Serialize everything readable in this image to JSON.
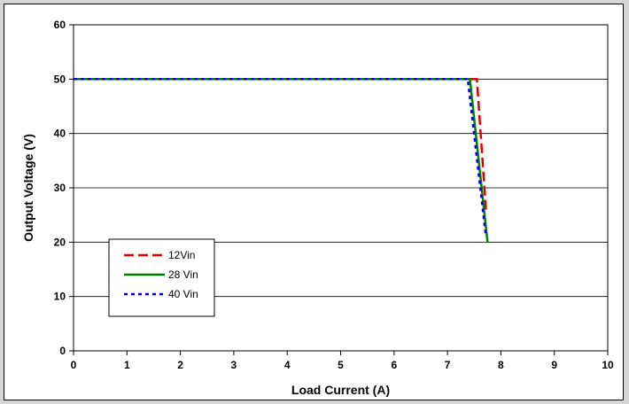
{
  "chart_data": {
    "type": "line",
    "title": "",
    "xlabel": "Load Current (A)",
    "ylabel": "Output Voltage (V)",
    "xlim": [
      0,
      10
    ],
    "ylim": [
      0,
      60
    ],
    "x_ticks": [
      0,
      1,
      2,
      3,
      4,
      5,
      6,
      7,
      8,
      9,
      10
    ],
    "y_ticks": [
      0,
      10,
      20,
      30,
      40,
      50,
      60
    ],
    "grid": "horizontal",
    "legend_position": "left",
    "series": [
      {
        "name": "12Vin",
        "color": "#e00000",
        "dash": "long-dash",
        "x": [
          0,
          7.55,
          7.72
        ],
        "y": [
          50,
          50,
          26
        ]
      },
      {
        "name": "28 Vin",
        "color": "#008000",
        "dash": "solid",
        "x": [
          0,
          7.42,
          7.75
        ],
        "y": [
          50,
          50,
          20
        ]
      },
      {
        "name": "40 Vin",
        "color": "#0000e0",
        "dash": "dotted",
        "x": [
          0,
          7.38,
          7.72
        ],
        "y": [
          50,
          50,
          21
        ]
      }
    ]
  }
}
